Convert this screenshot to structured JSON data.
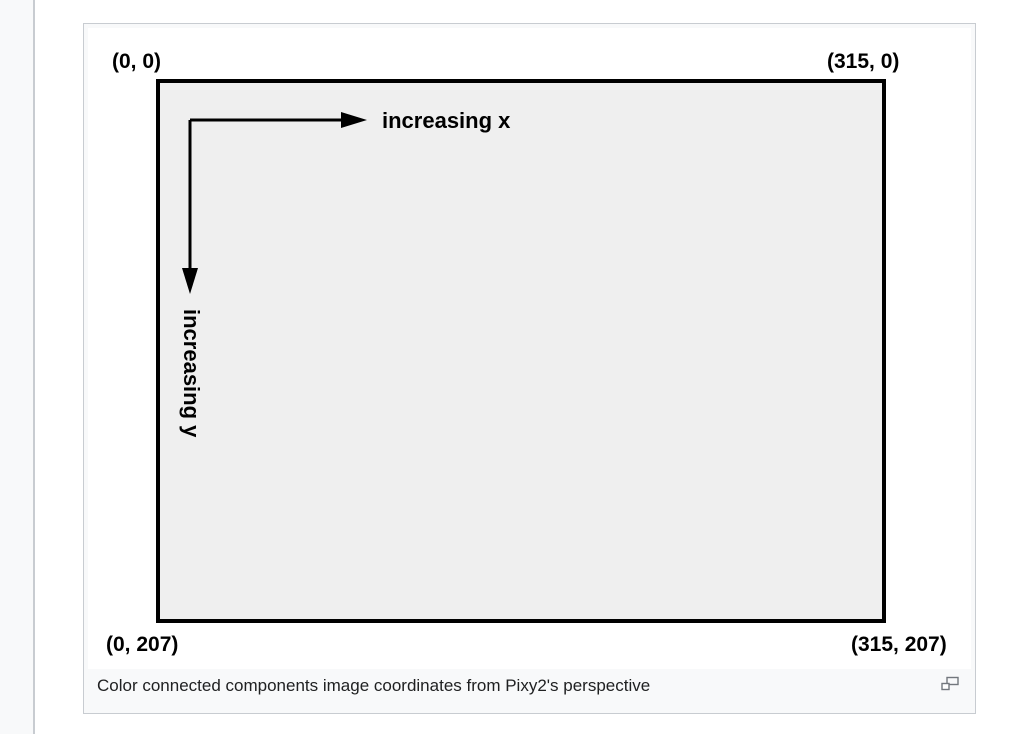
{
  "figure": {
    "corners": {
      "top_left": "(0, 0)",
      "top_right": "(315, 0)",
      "bottom_left": "(0, 207)",
      "bottom_right": "(315, 207)"
    },
    "axis_labels": {
      "x": "increasing x",
      "y": "increasing y"
    },
    "caption": "Color connected components image coordinates from Pixy2's perspective",
    "icons": {
      "enlarge": "enlarge-icon"
    },
    "colors": {
      "frame_border": "#c8ccd1",
      "frame_background": "#f8f9fa",
      "canvas_fill": "#efefef",
      "ink": "#000000"
    }
  }
}
